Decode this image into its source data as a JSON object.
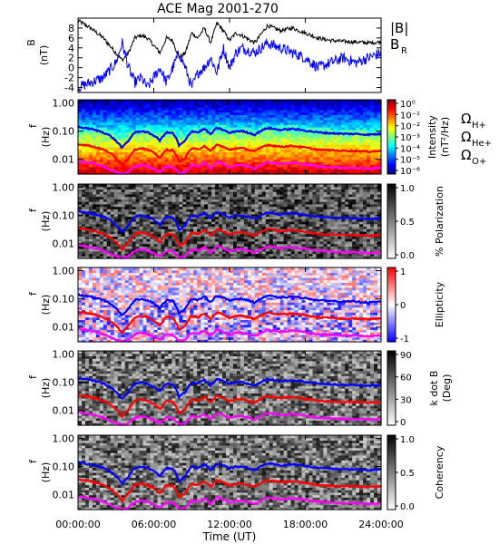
{
  "title": "ACE Mag 2001-270",
  "colors": {
    "h_plus": "#0000ff",
    "he_plus": "#ff0000",
    "o_plus": "#ff00ff",
    "bmag": "#000000",
    "br": "#0000ff"
  },
  "chart_data": [
    {
      "type": "line",
      "id": "field",
      "ylabel_main": "B",
      "ylabel_unit": "(nT)",
      "ylim": [
        -5,
        10
      ],
      "yticks": [
        "8",
        "6",
        "4",
        "2",
        "0",
        "-2",
        "-4"
      ],
      "ytick_values": [
        8,
        6,
        4,
        2,
        0,
        -2,
        -4
      ],
      "legend": {
        "bmag": "|B|",
        "br_base": "B",
        "br_sub": "R"
      },
      "series": [
        {
          "name": "|B|",
          "x": [
            0,
            1,
            2,
            2.5,
            3,
            3.5,
            4,
            4.5,
            5,
            5.5,
            6,
            6.5,
            7,
            7.5,
            8,
            8.5,
            9,
            9.5,
            10,
            10.5,
            11,
            11.5,
            12,
            12.5,
            13,
            14,
            15,
            16,
            17,
            18,
            19,
            20,
            21,
            22,
            23,
            24
          ],
          "values": [
            9.5,
            8,
            6,
            4.5,
            3,
            1.5,
            3,
            6,
            6.5,
            6,
            4.5,
            3,
            6,
            5.5,
            2,
            3,
            7,
            6,
            8,
            5,
            9,
            7.5,
            5.5,
            7,
            6.5,
            5,
            8.5,
            7.5,
            8,
            7,
            6,
            5.5,
            5.3,
            5.2,
            5.0,
            5.2
          ]
        },
        {
          "name": "B_R",
          "x": [
            0,
            1,
            2,
            3,
            3.5,
            4,
            4.5,
            5,
            5.5,
            6,
            6.5,
            7,
            7.5,
            8,
            8.5,
            9,
            9.5,
            10,
            10.5,
            11,
            11.5,
            12,
            12.5,
            13,
            14,
            15,
            16,
            17,
            18,
            19,
            20,
            21,
            22,
            23,
            24
          ],
          "values": [
            -4,
            -3,
            -2,
            1,
            5,
            0,
            -3,
            -2,
            -4,
            -2,
            0,
            -3,
            0,
            3,
            0,
            -4,
            -1,
            0,
            2,
            -1,
            4,
            0,
            3,
            4,
            3,
            5,
            4,
            3,
            2,
            0,
            1,
            2,
            1,
            2,
            3
          ]
        }
      ]
    },
    {
      "type": "heatmap",
      "id": "intensity",
      "ylabel_main": "f",
      "ylabel_unit": "(Hz)",
      "yticks": [
        "1.00",
        "0.10",
        "0.01"
      ],
      "ytick_values": [
        1.0,
        0.1,
        0.01
      ],
      "ylim": [
        0.003,
        1.3
      ],
      "colorbar": {
        "label_line1": "Intensity",
        "label_line2": "(nT²/Hz)",
        "ticks": [
          "10⁰",
          "10⁻¹",
          "10⁻²",
          "10⁻³",
          "10⁻⁴",
          "10⁻⁵",
          "10⁻⁶"
        ]
      },
      "legend": {
        "h_plus": "Ω",
        "h_plus_sub": "H+",
        "he_plus": "Ω",
        "he_plus_sub": "He+",
        "o_plus": "Ω",
        "o_plus_sub": "O+"
      }
    },
    {
      "type": "heatmap",
      "id": "polarization",
      "ylabel_main": "f",
      "ylabel_unit": "(Hz)",
      "yticks": [
        "1.00",
        "0.10",
        "0.01"
      ],
      "ytick_values": [
        1.0,
        0.1,
        0.01
      ],
      "ylim": [
        0.003,
        1.3
      ],
      "colorbar": {
        "label_line1": "% Polarization",
        "label_line2": "",
        "ticks": [
          "1.0",
          "0.5",
          "0.0"
        ]
      }
    },
    {
      "type": "heatmap",
      "id": "ellipticity",
      "ylabel_main": "f",
      "ylabel_unit": "(Hz)",
      "yticks": [
        "1.00",
        "0.10",
        "0.01"
      ],
      "ytick_values": [
        1.0,
        0.1,
        0.01
      ],
      "ylim": [
        0.003,
        1.3
      ],
      "colorbar": {
        "label_line1": "Ellipticity",
        "label_line2": "",
        "ticks": [
          "1",
          "0",
          "-1"
        ]
      }
    },
    {
      "type": "heatmap",
      "id": "kdotb",
      "ylabel_main": "f",
      "ylabel_unit": "(Hz)",
      "yticks": [
        "1.00",
        "0.10",
        "0.01"
      ],
      "ytick_values": [
        1.0,
        0.1,
        0.01
      ],
      "ylim": [
        0.003,
        1.3
      ],
      "colorbar": {
        "label_line1": "k dot B",
        "label_line2": "(Deg)",
        "ticks": [
          "90",
          "60",
          "30",
          "0"
        ]
      }
    },
    {
      "type": "heatmap",
      "id": "coherency",
      "ylabel_main": "f",
      "ylabel_unit": "(Hz)",
      "yticks": [
        "1.00",
        "0.10",
        "0.01"
      ],
      "ytick_values": [
        1.0,
        0.1,
        0.01
      ],
      "ylim": [
        0.003,
        1.3
      ],
      "colorbar": {
        "label_line1": "Coherency",
        "label_line2": "",
        "ticks": [
          "1.0",
          "0.5",
          "0.0"
        ]
      }
    }
  ],
  "gyrofrequency": {
    "x": [
      0,
      1,
      2,
      2.5,
      3,
      3.5,
      4,
      4.5,
      5,
      5.5,
      6,
      6.5,
      7,
      7.5,
      8,
      8.5,
      9,
      9.5,
      10,
      10.5,
      11,
      11.5,
      12,
      12.5,
      13,
      14,
      15,
      16,
      17,
      18,
      19,
      20,
      21,
      22,
      23,
      24
    ],
    "h_plus": [
      0.14,
      0.12,
      0.09,
      0.07,
      0.045,
      0.025,
      0.045,
      0.09,
      0.1,
      0.09,
      0.07,
      0.045,
      0.09,
      0.085,
      0.03,
      0.045,
      0.1,
      0.09,
      0.12,
      0.075,
      0.13,
      0.11,
      0.085,
      0.1,
      0.1,
      0.075,
      0.13,
      0.11,
      0.12,
      0.105,
      0.09,
      0.085,
      0.08,
      0.08,
      0.075,
      0.08
    ],
    "he_plus": [
      0.035,
      0.03,
      0.022,
      0.017,
      0.011,
      0.006,
      0.011,
      0.022,
      0.025,
      0.022,
      0.017,
      0.011,
      0.022,
      0.021,
      0.008,
      0.011,
      0.025,
      0.022,
      0.03,
      0.019,
      0.033,
      0.028,
      0.021,
      0.025,
      0.025,
      0.019,
      0.033,
      0.028,
      0.03,
      0.026,
      0.022,
      0.021,
      0.02,
      0.02,
      0.019,
      0.02
    ],
    "o_plus": [
      0.0088,
      0.0075,
      0.0056,
      0.0044,
      0.0035,
      0.0031,
      0.0035,
      0.0056,
      0.0063,
      0.0056,
      0.0044,
      0.0035,
      0.0056,
      0.0053,
      0.0032,
      0.0035,
      0.0063,
      0.0056,
      0.0075,
      0.0047,
      0.0081,
      0.0069,
      0.0053,
      0.0063,
      0.0063,
      0.0047,
      0.0081,
      0.0069,
      0.0075,
      0.0066,
      0.0056,
      0.0053,
      0.005,
      0.005,
      0.0047,
      0.005
    ]
  },
  "xaxis": {
    "label": "Time (UT)",
    "xlim": [
      0,
      24
    ],
    "ticks": [
      "00:00:00",
      "06:00:00",
      "12:00:00",
      "18:00:00",
      "24:00:00"
    ],
    "tick_values": [
      0,
      6,
      12,
      18,
      24
    ]
  }
}
